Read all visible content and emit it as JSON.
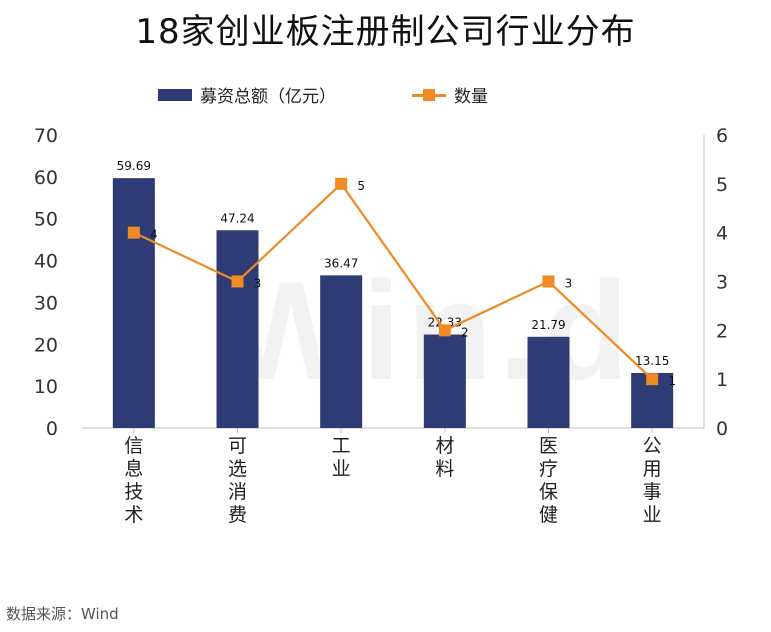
{
  "title": "18家创业板注册制公司行业分布",
  "source": "数据来源：Wind",
  "watermark": "Win.d",
  "colors": {
    "bar": "#2e3b74",
    "line": "#f08a24"
  },
  "chart_data": {
    "type": "bar",
    "title": "18家创业板注册制公司行业分布",
    "categories": [
      "信息技术",
      "可选消费",
      "工业",
      "材料",
      "医疗保健",
      "公用事业"
    ],
    "series": [
      {
        "name": "募资总额（亿元）",
        "type": "bar",
        "axis": "left",
        "values": [
          59.69,
          47.24,
          36.47,
          22.33,
          21.79,
          13.15
        ]
      },
      {
        "name": "数量",
        "type": "line",
        "axis": "right",
        "values": [
          4,
          3,
          5,
          2,
          3,
          1
        ]
      }
    ],
    "y_left": {
      "min": 0,
      "max": 70,
      "ticks": [
        0,
        10,
        20,
        30,
        40,
        50,
        60,
        70
      ]
    },
    "y_right": {
      "min": 0,
      "max": 6,
      "ticks": [
        0,
        1,
        2,
        3,
        4,
        5,
        6
      ]
    },
    "legend_position": "top",
    "grid": false
  }
}
